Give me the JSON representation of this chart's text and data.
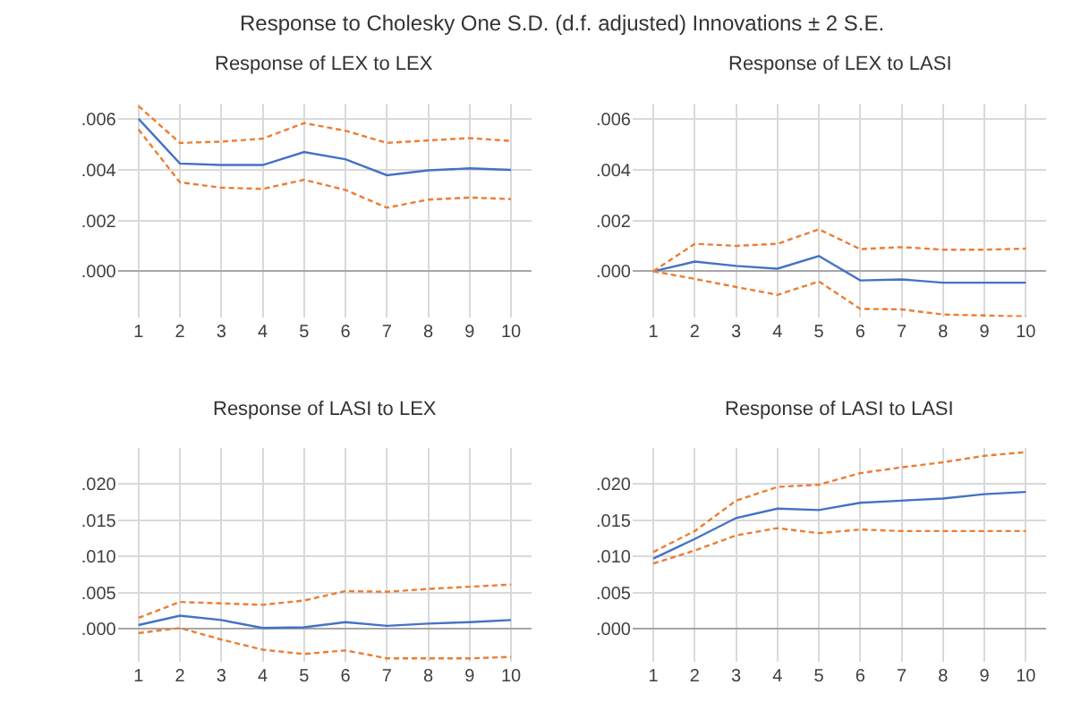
{
  "chart_data": [
    {
      "type": "line",
      "title": "Response of LEX to LEX",
      "annotations": [
        "Response to Cholesky One S.D. (d.f. adjusted) Innovations ± 2 S.E."
      ],
      "categories": [
        "1",
        "2",
        "3",
        "4",
        "5",
        "6",
        "7",
        "8",
        "9",
        "10"
      ],
      "ylim": [
        -0.0018,
        0.0066
      ],
      "yticks": [
        {
          "value": 0,
          "label": ".000"
        },
        {
          "value": 0.002,
          "label": ".002"
        },
        {
          "value": 0.004,
          "label": ".004"
        },
        {
          "value": 0.006,
          "label": ".006"
        }
      ],
      "grid": true,
      "series": [
        {
          "color": "#4472c4",
          "line_style": "solid",
          "values": [
            0.006,
            0.00424,
            0.00418,
            0.00418,
            0.00469,
            0.00441,
            0.00378,
            0.00397,
            0.00405,
            0.00399
          ]
        },
        {
          "color": "#ed7d31",
          "line_style": "dashed",
          "values": [
            0.0065,
            0.00505,
            0.0051,
            0.00522,
            0.00583,
            0.00553,
            0.00505,
            0.00515,
            0.00524,
            0.00513
          ]
        },
        {
          "color": "#ed7d31",
          "line_style": "dashed",
          "values": [
            0.00558,
            0.0035,
            0.00329,
            0.00324,
            0.0036,
            0.0032,
            0.0025,
            0.00282,
            0.0029,
            0.00284
          ]
        }
      ]
    },
    {
      "type": "line",
      "title": "Response of LEX to LASI",
      "categories": [
        "1",
        "2",
        "3",
        "4",
        "5",
        "6",
        "7",
        "8",
        "9",
        "10"
      ],
      "ylim": [
        -0.0018,
        0.0066
      ],
      "yticks": [
        {
          "value": 0,
          "label": ".000"
        },
        {
          "value": 0.002,
          "label": ".002"
        },
        {
          "value": 0.004,
          "label": ".004"
        },
        {
          "value": 0.006,
          "label": ".006"
        }
      ],
      "grid": true,
      "series": [
        {
          "color": "#4472c4",
          "line_style": "solid",
          "values": [
            0,
            0.00038,
            0.00021,
            0.0001,
            0.0006,
            -0.00036,
            -0.00032,
            -0.00045,
            -0.00045,
            -0.00045
          ]
        },
        {
          "color": "#ed7d31",
          "line_style": "dashed",
          "values": [
            0,
            0.00108,
            0.001,
            0.00108,
            0.00165,
            0.00087,
            0.00095,
            0.00085,
            0.00085,
            0.00089
          ]
        },
        {
          "color": "#ed7d31",
          "line_style": "dashed",
          "values": [
            0,
            -0.0003,
            -0.00062,
            -0.00093,
            -0.0004,
            -0.00148,
            -0.0015,
            -0.0017,
            -0.00174,
            -0.00178
          ]
        }
      ]
    },
    {
      "type": "line",
      "title": "Response of LASI to LEX",
      "categories": [
        "1",
        "2",
        "3",
        "4",
        "5",
        "6",
        "7",
        "8",
        "9",
        "10"
      ],
      "ylim": [
        -0.0045,
        0.025
      ],
      "yticks": [
        {
          "value": 0,
          "label": ".000"
        },
        {
          "value": 0.005,
          "label": ".005"
        },
        {
          "value": 0.01,
          "label": ".010"
        },
        {
          "value": 0.015,
          "label": ".015"
        },
        {
          "value": 0.02,
          "label": ".020"
        }
      ],
      "grid": true,
      "series": [
        {
          "color": "#4472c4",
          "line_style": "solid",
          "values": [
            0.0005,
            0.0018,
            0.0012,
            0.0001,
            0.0002,
            0.0009,
            0.0004,
            0.0007,
            0.0009,
            0.0012
          ]
        },
        {
          "color": "#ed7d31",
          "line_style": "dashed",
          "values": [
            0.0015,
            0.0037,
            0.0035,
            0.0033,
            0.0039,
            0.0052,
            0.0051,
            0.0055,
            0.0058,
            0.0061
          ]
        },
        {
          "color": "#ed7d31",
          "line_style": "dashed",
          "values": [
            -0.0006,
            0.0001,
            -0.0015,
            -0.0029,
            -0.0035,
            -0.003,
            -0.0041,
            -0.0041,
            -0.0041,
            -0.0039
          ]
        }
      ]
    },
    {
      "type": "line",
      "title": "Response of LASI to LASI",
      "categories": [
        "1",
        "2",
        "3",
        "4",
        "5",
        "6",
        "7",
        "8",
        "9",
        "10"
      ],
      "ylim": [
        -0.0045,
        0.025
      ],
      "yticks": [
        {
          "value": 0,
          "label": ".000"
        },
        {
          "value": 0.005,
          "label": ".005"
        },
        {
          "value": 0.01,
          "label": ".010"
        },
        {
          "value": 0.015,
          "label": ".015"
        },
        {
          "value": 0.02,
          "label": ".020"
        }
      ],
      "grid": true,
      "series": [
        {
          "color": "#4472c4",
          "line_style": "solid",
          "values": [
            0.0097,
            0.0124,
            0.0153,
            0.0166,
            0.0164,
            0.0174,
            0.0177,
            0.018,
            0.0186,
            0.0189
          ]
        },
        {
          "color": "#ed7d31",
          "line_style": "dashed",
          "values": [
            0.0106,
            0.0135,
            0.0177,
            0.0196,
            0.0199,
            0.0215,
            0.0223,
            0.023,
            0.0239,
            0.0244
          ]
        },
        {
          "color": "#ed7d31",
          "line_style": "dashed",
          "values": [
            0.009,
            0.0108,
            0.0129,
            0.0139,
            0.0132,
            0.0137,
            0.0135,
            0.0135,
            0.0135,
            0.0135
          ]
        }
      ]
    }
  ]
}
